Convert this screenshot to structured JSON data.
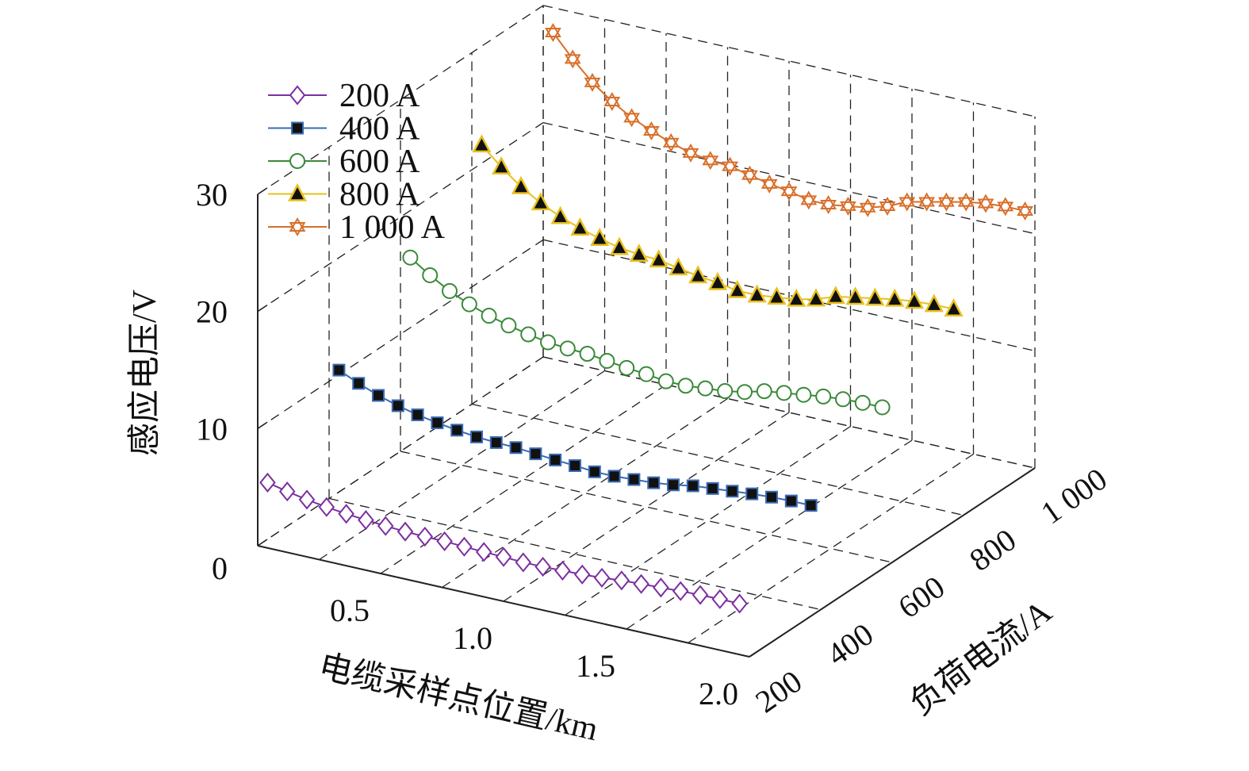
{
  "chart_data": {
    "type": "line",
    "projection": "3d",
    "xlabel": "电缆采样点位置/km",
    "ylabel": "负荷电流/A",
    "zlabel": "感应电压/V",
    "xlim": [
      0,
      2.0
    ],
    "ylim": [
      200,
      1000
    ],
    "zlim": [
      0,
      30
    ],
    "xticks": [
      {
        "v": 0.5,
        "label": "0.5"
      },
      {
        "v": 1.0,
        "label": "1.0"
      },
      {
        "v": 1.5,
        "label": "1.5"
      },
      {
        "v": 2.0,
        "label": "2.0"
      }
    ],
    "yticks": [
      {
        "v": 200,
        "label": "200"
      },
      {
        "v": 400,
        "label": "400"
      },
      {
        "v": 600,
        "label": "600"
      },
      {
        "v": 800,
        "label": "800"
      },
      {
        "v": 1000,
        "label": "1 000"
      }
    ],
    "zticks": [
      {
        "v": 0,
        "label": "0"
      },
      {
        "v": 10,
        "label": "10"
      },
      {
        "v": 20,
        "label": "20"
      },
      {
        "v": 30,
        "label": "30"
      }
    ],
    "grid": true,
    "legend_position": "top-left",
    "x": [
      0.04,
      0.12,
      0.2,
      0.28,
      0.36,
      0.44,
      0.52,
      0.6,
      0.68,
      0.76,
      0.84,
      0.92,
      1.0,
      1.08,
      1.16,
      1.24,
      1.32,
      1.4,
      1.48,
      1.56,
      1.64,
      1.72,
      1.8,
      1.88,
      1.96
    ],
    "series": [
      {
        "name": "200 A",
        "load": 200,
        "color": "#7b2fa0",
        "marker": "diamond",
        "values": [
          5.58,
          5.2,
          4.88,
          4.63,
          4.43,
          4.28,
          4.15,
          4.05,
          4.0,
          3.98,
          3.9,
          3.83,
          3.78,
          3.7,
          3.7,
          3.75,
          3.8,
          3.9,
          4.05,
          4.13,
          4.2,
          4.28,
          4.33,
          4.35,
          4.35
        ]
      },
      {
        "name": "400 A",
        "load": 400,
        "color": "#3a6bb5",
        "marker": "square",
        "values": [
          11.15,
          10.4,
          9.75,
          9.25,
          8.85,
          8.55,
          8.3,
          8.1,
          8.0,
          7.95,
          7.8,
          7.65,
          7.55,
          7.4,
          7.4,
          7.5,
          7.6,
          7.8,
          8.1,
          8.25,
          8.4,
          8.55,
          8.65,
          8.7,
          8.7
        ]
      },
      {
        "name": "600 A",
        "load": 600,
        "color": "#3a8a3a",
        "marker": "circle",
        "values": [
          16.73,
          15.6,
          14.63,
          13.88,
          13.28,
          12.83,
          12.45,
          12.15,
          12.0,
          11.93,
          11.7,
          11.48,
          11.33,
          11.1,
          11.1,
          11.25,
          11.4,
          11.7,
          12.15,
          12.38,
          12.6,
          12.83,
          12.98,
          13.05,
          13.05
        ]
      },
      {
        "name": "800 A",
        "load": 800,
        "color": "#e8c020",
        "marker": "triangle",
        "values": [
          22.3,
          20.8,
          19.5,
          18.5,
          17.7,
          17.1,
          16.6,
          16.2,
          16.0,
          15.9,
          15.6,
          15.3,
          15.1,
          14.8,
          14.8,
          15.0,
          15.2,
          15.6,
          16.2,
          16.5,
          16.8,
          17.1,
          17.3,
          17.4,
          17.4
        ]
      },
      {
        "name": "1 000 A",
        "load": 1000,
        "color": "#d86f2a",
        "marker": "hexagram",
        "values": [
          27.88,
          26.0,
          24.38,
          23.13,
          22.13,
          21.38,
          20.75,
          20.25,
          20.0,
          19.88,
          19.5,
          19.13,
          18.88,
          18.5,
          18.5,
          18.75,
          19.0,
          19.5,
          20.25,
          20.63,
          21.0,
          21.38,
          21.63,
          21.75,
          21.75
        ]
      }
    ]
  }
}
